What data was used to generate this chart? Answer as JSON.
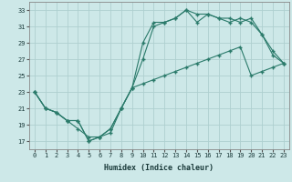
{
  "xlabel": "Humidex (Indice chaleur)",
  "bg_color": "#cde8e8",
  "line_color": "#2a7a6a",
  "grid_color": "#aed0d0",
  "xlim": [
    -0.5,
    23.5
  ],
  "ylim": [
    16,
    34
  ],
  "xticks": [
    0,
    1,
    2,
    3,
    4,
    5,
    6,
    7,
    8,
    9,
    10,
    11,
    12,
    13,
    14,
    15,
    16,
    17,
    18,
    19,
    20,
    21,
    22,
    23
  ],
  "yticks": [
    17,
    19,
    21,
    23,
    25,
    27,
    29,
    31,
    33
  ],
  "line1_x": [
    0,
    1,
    2,
    3,
    4,
    5,
    6,
    7,
    8,
    9,
    10,
    11,
    12,
    13,
    14,
    15,
    16,
    17,
    18,
    19,
    20,
    21,
    22,
    23
  ],
  "line1_y": [
    23,
    21,
    20.5,
    19.5,
    18.5,
    17.5,
    17.5,
    18.0,
    21.0,
    23.5,
    29.0,
    31.5,
    31.5,
    32.0,
    33.0,
    31.5,
    32.5,
    32.0,
    32.0,
    31.5,
    32.0,
    30.0,
    28.0,
    26.5
  ],
  "line2_x": [
    0,
    1,
    2,
    3,
    4,
    5,
    6,
    7,
    8,
    9,
    10,
    11,
    12,
    13,
    14,
    15,
    16,
    17,
    18,
    19,
    20,
    21,
    22,
    23
  ],
  "line2_y": [
    23,
    21,
    20.5,
    19.5,
    19.5,
    17.0,
    17.5,
    18.5,
    21.0,
    23.5,
    27.0,
    31.0,
    31.5,
    32.0,
    33.0,
    32.5,
    32.5,
    32.0,
    31.5,
    32.0,
    31.5,
    30.0,
    27.5,
    26.5
  ],
  "line3_x": [
    0,
    1,
    2,
    3,
    4,
    5,
    6,
    7,
    8,
    9,
    10,
    11,
    12,
    13,
    14,
    15,
    16,
    17,
    18,
    19,
    20,
    21,
    22,
    23
  ],
  "line3_y": [
    23,
    21,
    20.5,
    19.5,
    19.5,
    17.0,
    17.5,
    18.5,
    21.0,
    23.5,
    24.0,
    24.5,
    25.0,
    25.5,
    26.0,
    26.5,
    27.0,
    27.5,
    28.0,
    28.5,
    25.0,
    25.5,
    26.0,
    26.5
  ]
}
